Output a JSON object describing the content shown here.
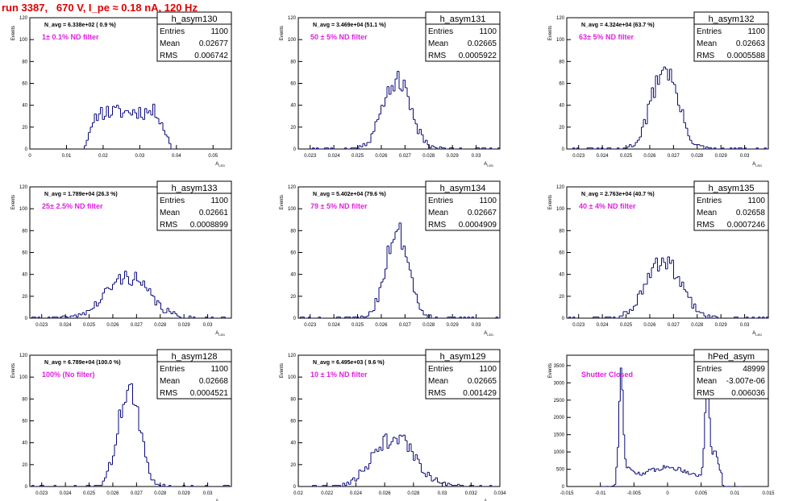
{
  "page": {
    "title": "run 3387,   670 V, I_pe ≈ 0.18 nA, 120 Hz"
  },
  "colors": {
    "hist_line": "#0a0a7a",
    "filter_label": "#e020e0",
    "title": "#e00000",
    "axis": "#000000"
  },
  "stat_labels": {
    "entries": "Entries",
    "mean": "Mean",
    "rms": "RMS"
  },
  "chart_data": [
    {
      "type": "bar",
      "name": "h_asym130",
      "navg": "N_avg = 6.338e+02 ( 0.9 %)",
      "filter": "1± 0.1% ND filter",
      "entries": "1100",
      "mean": "0.02677",
      "rms": "0.006742",
      "ylabel": "Events",
      "xlabel": "A_LED",
      "xlim": [
        0,
        0.055
      ],
      "ylim": [
        0,
        120
      ],
      "xticks": [
        0,
        0.01,
        0.02,
        0.03,
        0.04,
        0.05
      ],
      "xtick_labels": [
        "0",
        "0.01",
        "0.02",
        "0.03",
        "0.04",
        "0.05"
      ],
      "yticks": [
        0,
        20,
        40,
        60,
        80,
        100,
        120
      ],
      "ytick_labels": [
        "0",
        "20",
        "40",
        "60",
        "80",
        "100",
        "120"
      ],
      "hist": {
        "mean": 0.02677,
        "sigma": 0.0067,
        "shape": "flat",
        "peak": 34,
        "bins": 100,
        "seed": 11
      }
    },
    {
      "type": "bar",
      "name": "h_asym131",
      "navg": "N_avg = 3.469e+04 (51.1 %)",
      "filter": "50 ± 5% ND filter",
      "entries": "1100",
      "mean": "0.02665",
      "rms": "0.0005922",
      "ylabel": "Events",
      "xlabel": "A_LED",
      "xlim": [
        0.0225,
        0.031
      ],
      "ylim": [
        0,
        120
      ],
      "xticks": [
        0.023,
        0.024,
        0.025,
        0.026,
        0.027,
        0.028,
        0.029,
        0.03
      ],
      "xtick_labels": [
        "0.023",
        "0.024",
        "0.025",
        "0.026",
        "0.027",
        "0.028",
        "0.029",
        "0.03"
      ],
      "yticks": [
        0,
        20,
        40,
        60,
        80,
        100,
        120
      ],
      "ytick_labels": [
        "0",
        "20",
        "40",
        "60",
        "80",
        "100",
        "120"
      ],
      "hist": {
        "mean": 0.02665,
        "sigma": 0.00059,
        "shape": "gauss",
        "peak": 63,
        "bins": 100,
        "seed": 21
      }
    },
    {
      "type": "bar",
      "name": "h_asym132",
      "navg": "N_avg = 4.324e+04 (63.7 %)",
      "filter": "63± 5% ND filter",
      "entries": "1100",
      "mean": "0.02663",
      "rms": "0.0005588",
      "ylabel": "Events",
      "xlabel": "A_LED",
      "xlim": [
        0.0225,
        0.031
      ],
      "ylim": [
        0,
        120
      ],
      "xticks": [
        0.023,
        0.024,
        0.025,
        0.026,
        0.027,
        0.028,
        0.029,
        0.03
      ],
      "xtick_labels": [
        "0.023",
        "0.024",
        "0.025",
        "0.026",
        "0.027",
        "0.028",
        "0.029",
        "0.03"
      ],
      "yticks": [
        0,
        20,
        40,
        60,
        80,
        100,
        120
      ],
      "ytick_labels": [
        "0",
        "20",
        "40",
        "60",
        "80",
        "100",
        "120"
      ],
      "hist": {
        "mean": 0.02663,
        "sigma": 0.00056,
        "shape": "gauss",
        "peak": 74,
        "bins": 100,
        "seed": 31
      }
    },
    {
      "type": "bar",
      "name": "h_asym133",
      "navg": "N_avg = 1.789e+04 (26.3 %)",
      "filter": "25± 2.5% ND filter",
      "entries": "1100",
      "mean": "0.02661",
      "rms": "0.0008899",
      "ylabel": "Events",
      "xlabel": "A_LED",
      "xlim": [
        0.0225,
        0.031
      ],
      "ylim": [
        0,
        120
      ],
      "xticks": [
        0.023,
        0.024,
        0.025,
        0.026,
        0.027,
        0.028,
        0.029,
        0.03
      ],
      "xtick_labels": [
        "0.023",
        "0.024",
        "0.025",
        "0.026",
        "0.027",
        "0.028",
        "0.029",
        "0.03"
      ],
      "yticks": [
        0,
        20,
        40,
        60,
        80,
        100,
        120
      ],
      "ytick_labels": [
        "0",
        "20",
        "40",
        "60",
        "80",
        "100",
        "120"
      ],
      "hist": {
        "mean": 0.02661,
        "sigma": 0.00089,
        "shape": "gauss",
        "peak": 38,
        "bins": 100,
        "seed": 41
      }
    },
    {
      "type": "bar",
      "name": "h_asym134",
      "navg": "N_avg = 5.402e+04 (79.6 %)",
      "filter": "79 ± 5% ND filter",
      "entries": "1100",
      "mean": "0.02667",
      "rms": "0.0004909",
      "ylabel": "Events",
      "xlabel": "A_LED",
      "xlim": [
        0.0225,
        0.031
      ],
      "ylim": [
        0,
        120
      ],
      "xticks": [
        0.023,
        0.024,
        0.025,
        0.026,
        0.027,
        0.028,
        0.029,
        0.03
      ],
      "xtick_labels": [
        "0.023",
        "0.024",
        "0.025",
        "0.026",
        "0.027",
        "0.028",
        "0.029",
        "0.03"
      ],
      "yticks": [
        0,
        20,
        40,
        60,
        80,
        100,
        120
      ],
      "ytick_labels": [
        "0",
        "20",
        "40",
        "60",
        "80",
        "100",
        "120"
      ],
      "hist": {
        "mean": 0.02667,
        "sigma": 0.00049,
        "shape": "gauss",
        "peak": 80,
        "bins": 100,
        "seed": 51
      }
    },
    {
      "type": "bar",
      "name": "h_asym135",
      "navg": "N_avg = 2.763e+04 (40.7 %)",
      "filter": "40 ± 4% ND filter",
      "entries": "1100",
      "mean": "0.02658",
      "rms": "0.0007246",
      "ylabel": "Events",
      "xlabel": "A_LED",
      "xlim": [
        0.0225,
        0.031
      ],
      "ylim": [
        0,
        120
      ],
      "xticks": [
        0.023,
        0.024,
        0.025,
        0.026,
        0.027,
        0.028,
        0.029,
        0.03
      ],
      "xtick_labels": [
        "0.023",
        "0.024",
        "0.025",
        "0.026",
        "0.027",
        "0.028",
        "0.029",
        "0.03"
      ],
      "yticks": [
        0,
        20,
        40,
        60,
        80,
        100,
        120
      ],
      "ytick_labels": [
        "0",
        "20",
        "40",
        "60",
        "80",
        "100",
        "120"
      ],
      "hist": {
        "mean": 0.02658,
        "sigma": 0.00072,
        "shape": "gauss",
        "peak": 52,
        "bins": 100,
        "seed": 61
      }
    },
    {
      "type": "bar",
      "name": "h_asym128",
      "navg": "N_avg = 6.789e+04 (100.0 %)",
      "filter": "100% (No filter)",
      "entries": "1100",
      "mean": "0.02668",
      "rms": "0.0004521",
      "ylabel": "Events",
      "xlabel": "A_LED",
      "xlim": [
        0.0225,
        0.031
      ],
      "ylim": [
        0,
        120
      ],
      "xticks": [
        0.023,
        0.024,
        0.025,
        0.026,
        0.027,
        0.028,
        0.029,
        0.03
      ],
      "xtick_labels": [
        "0.023",
        "0.024",
        "0.025",
        "0.026",
        "0.027",
        "0.028",
        "0.029",
        "0.03"
      ],
      "yticks": [
        0,
        20,
        40,
        60,
        80,
        100,
        120
      ],
      "ytick_labels": [
        "0",
        "20",
        "40",
        "60",
        "80",
        "100",
        "120"
      ],
      "hist": {
        "mean": 0.02668,
        "sigma": 0.00045,
        "shape": "gauss",
        "peak": 90,
        "bins": 100,
        "seed": 71
      }
    },
    {
      "type": "bar",
      "name": "h_asym129",
      "navg": "N_avg = 6.495e+03 ( 9.6 %)",
      "filter": "10 ± 1% ND filter",
      "entries": "1100",
      "mean": "0.02665",
      "rms": "0.001429",
      "ylabel": "Events",
      "xlabel": "A_LED",
      "xlim": [
        0.02,
        0.034
      ],
      "ylim": [
        0,
        120
      ],
      "xticks": [
        0.02,
        0.022,
        0.024,
        0.026,
        0.028,
        0.03,
        0.032,
        0.034
      ],
      "xtick_labels": [
        "0.02",
        "0.022",
        "0.024",
        "0.026",
        "0.028",
        "0.03",
        "0.032",
        "0.034"
      ],
      "yticks": [
        0,
        20,
        40,
        60,
        80,
        100,
        120
      ],
      "ytick_labels": [
        "0",
        "20",
        "40",
        "60",
        "80",
        "100",
        "120"
      ],
      "hist": {
        "mean": 0.02665,
        "sigma": 0.00143,
        "shape": "gauss",
        "peak": 45,
        "bins": 100,
        "seed": 81
      }
    },
    {
      "type": "bar",
      "name": "hPed_asym",
      "navg": "",
      "filter": "Shutter Closed",
      "entries": "48999",
      "mean": "-3.007e-06",
      "rms": "0.006036",
      "ylabel": "Events",
      "xlabel": "",
      "xlim": [
        -0.015,
        0.015
      ],
      "ylim": [
        0,
        3800
      ],
      "xticks": [
        -0.015,
        -0.01,
        -0.005,
        0,
        0.005,
        0.01,
        0.015
      ],
      "xtick_labels": [
        "-0.015",
        "-0.01",
        "-0.005",
        "0",
        "0.005",
        "0.01",
        "0.015"
      ],
      "yticks": [
        0,
        500,
        1000,
        1500,
        2000,
        2500,
        3000,
        3500
      ],
      "ytick_labels": [
        "0",
        "500",
        "1000",
        "1500",
        "2000",
        "2500",
        "3000",
        "3500"
      ],
      "hist": {
        "shape": "pedestal",
        "bins": 100,
        "seed": 91,
        "range": [
          -0.011,
          0.011
        ],
        "components": [
          {
            "mean": -0.0069,
            "sigma": 0.00028,
            "peak": 3000
          },
          {
            "mean": 0.0059,
            "sigma": 0.00032,
            "peak": 2800
          },
          {
            "mean": 0.007,
            "sigma": 0.0005,
            "peak": 700
          },
          {
            "mean": -0.006,
            "sigma": 0.0009,
            "peak": 250
          }
        ],
        "baseline": 550
      }
    }
  ]
}
